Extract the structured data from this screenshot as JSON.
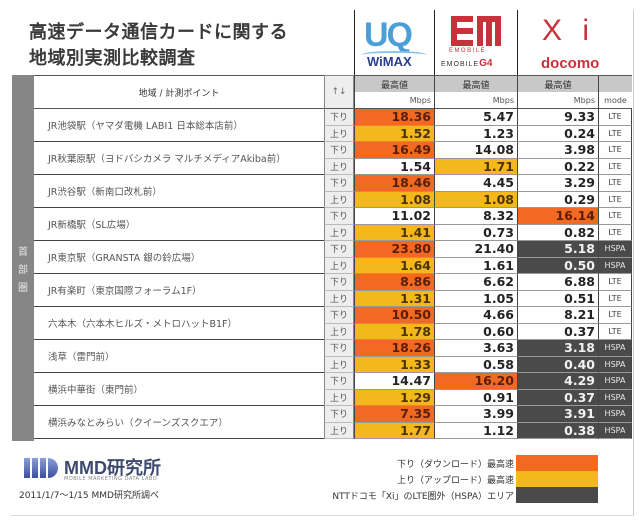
{
  "title": {
    "line1": "高速データ通信カードに関する",
    "line2": "地域別実測比較調査"
  },
  "carriers": [
    {
      "id": "uq",
      "logo_main": "UQ",
      "logo_sub": "WiMAX"
    },
    {
      "id": "em",
      "logo_sub": "EMOBILE",
      "logo_g4_prefix": "EMOBILE",
      "logo_g4": "G4"
    },
    {
      "id": "docomo",
      "logo_main": "X i",
      "logo_sub": "docomo"
    }
  ],
  "table": {
    "region_label": [
      "首",
      "部",
      "圏"
    ],
    "header": {
      "location": "地域 / 計測ポイント",
      "direction": "↑↓",
      "max_label": "最高値",
      "unit": "Mbps",
      "mode": "mode"
    },
    "rows": [
      {
        "location": "JR池袋駅（ヤマダ電機 LABI1 日本総本店前）",
        "down": {
          "label": "下り",
          "uq": "18.36",
          "em": "5.47",
          "dc": "9.33",
          "mode": "LTE",
          "hl": [
            "down",
            "",
            ""
          ]
        },
        "up": {
          "label": "上り",
          "uq": "1.52",
          "em": "1.23",
          "dc": "0.24",
          "mode": "LTE",
          "hl": [
            "up",
            "",
            ""
          ]
        }
      },
      {
        "location": "JR秋葉原駅（ヨドバシカメラ マルチメディアAkiba前）",
        "down": {
          "label": "下り",
          "uq": "16.49",
          "em": "14.08",
          "dc": "3.98",
          "mode": "LTE",
          "hl": [
            "down",
            "",
            ""
          ]
        },
        "up": {
          "label": "上り",
          "uq": "1.54",
          "em": "1.71",
          "dc": "0.22",
          "mode": "LTE",
          "hl": [
            "",
            "up",
            ""
          ]
        }
      },
      {
        "location": "JR渋谷駅（新南口改札前）",
        "down": {
          "label": "下り",
          "uq": "18.46",
          "em": "4.45",
          "dc": "3.29",
          "mode": "LTE",
          "hl": [
            "down",
            "",
            ""
          ]
        },
        "up": {
          "label": "上り",
          "uq": "1.08",
          "em": "1.08",
          "dc": "0.29",
          "mode": "LTE",
          "hl": [
            "up",
            "up",
            ""
          ]
        }
      },
      {
        "location": "JR新橋駅（SL広場）",
        "down": {
          "label": "下り",
          "uq": "11.02",
          "em": "8.32",
          "dc": "16.14",
          "mode": "LTE",
          "hl": [
            "",
            "",
            "down"
          ]
        },
        "up": {
          "label": "上り",
          "uq": "1.41",
          "em": "0.73",
          "dc": "0.82",
          "mode": "LTE",
          "hl": [
            "up",
            "",
            ""
          ]
        }
      },
      {
        "location": "JR東京駅（GRANSTA 銀の鈴広場）",
        "down": {
          "label": "下り",
          "uq": "23.80",
          "em": "21.40",
          "dc": "5.18",
          "mode": "HSPA",
          "hl": [
            "down",
            "",
            "hspa"
          ]
        },
        "up": {
          "label": "上り",
          "uq": "1.64",
          "em": "1.61",
          "dc": "0.50",
          "mode": "HSPA",
          "hl": [
            "up",
            "",
            "hspa"
          ]
        }
      },
      {
        "location": "JR有楽町（東京国際フォーラム1F）",
        "down": {
          "label": "下り",
          "uq": "8.86",
          "em": "6.62",
          "dc": "6.88",
          "mode": "LTE",
          "hl": [
            "down",
            "",
            ""
          ]
        },
        "up": {
          "label": "上り",
          "uq": "1.31",
          "em": "1.05",
          "dc": "0.51",
          "mode": "LTE",
          "hl": [
            "up",
            "",
            ""
          ]
        }
      },
      {
        "location": "六本木（六本木ヒルズ・メトロハットB1F）",
        "down": {
          "label": "下り",
          "uq": "10.50",
          "em": "4.66",
          "dc": "8.21",
          "mode": "LTE",
          "hl": [
            "down",
            "",
            ""
          ]
        },
        "up": {
          "label": "上り",
          "uq": "1.78",
          "em": "0.60",
          "dc": "0.37",
          "mode": "LTE",
          "hl": [
            "up",
            "",
            ""
          ]
        }
      },
      {
        "location": "浅草（雷門前）",
        "down": {
          "label": "下り",
          "uq": "18.26",
          "em": "3.63",
          "dc": "3.18",
          "mode": "HSPA",
          "hl": [
            "down",
            "",
            "hspa"
          ]
        },
        "up": {
          "label": "上り",
          "uq": "1.33",
          "em": "0.58",
          "dc": "0.40",
          "mode": "HSPA",
          "hl": [
            "up",
            "",
            "hspa"
          ]
        }
      },
      {
        "location": "横浜中華街（東門前）",
        "down": {
          "label": "下り",
          "uq": "14.47",
          "em": "16.20",
          "dc": "4.29",
          "mode": "HSPA",
          "hl": [
            "",
            "down",
            "hspa"
          ]
        },
        "up": {
          "label": "上り",
          "uq": "1.29",
          "em": "0.91",
          "dc": "0.37",
          "mode": "HSPA",
          "hl": [
            "up",
            "",
            "hspa"
          ]
        }
      },
      {
        "location": "横浜みなとみらい（クイーンズスクエア）",
        "down": {
          "label": "下り",
          "uq": "7.35",
          "em": "3.99",
          "dc": "3.91",
          "mode": "HSPA",
          "hl": [
            "down",
            "",
            "hspa"
          ]
        },
        "up": {
          "label": "上り",
          "uq": "1.77",
          "em": "1.12",
          "dc": "0.38",
          "mode": "HSPA",
          "hl": [
            "up",
            "",
            "hspa"
          ]
        }
      }
    ]
  },
  "footer": {
    "brand_name": "MMD研究所",
    "brand_tagline": "MOBILE MARKETING DATA LABO",
    "survey_note": "2011/1/7〜1/15 MMD研究所調べ",
    "legend": [
      {
        "label": "下り（ダウンロード）最高速",
        "color": "#f26a21"
      },
      {
        "label": "上り（アップロード）最高速",
        "color": "#f5b81c"
      },
      {
        "label": "NTTドコモ「Xi」のLTE圏外（HSPA）エリア",
        "color": "#4a4a4a"
      }
    ]
  },
  "colors": {
    "download_max": "#f26a21",
    "upload_max": "#f5b81c",
    "hspa_area": "#4a4a4a"
  }
}
